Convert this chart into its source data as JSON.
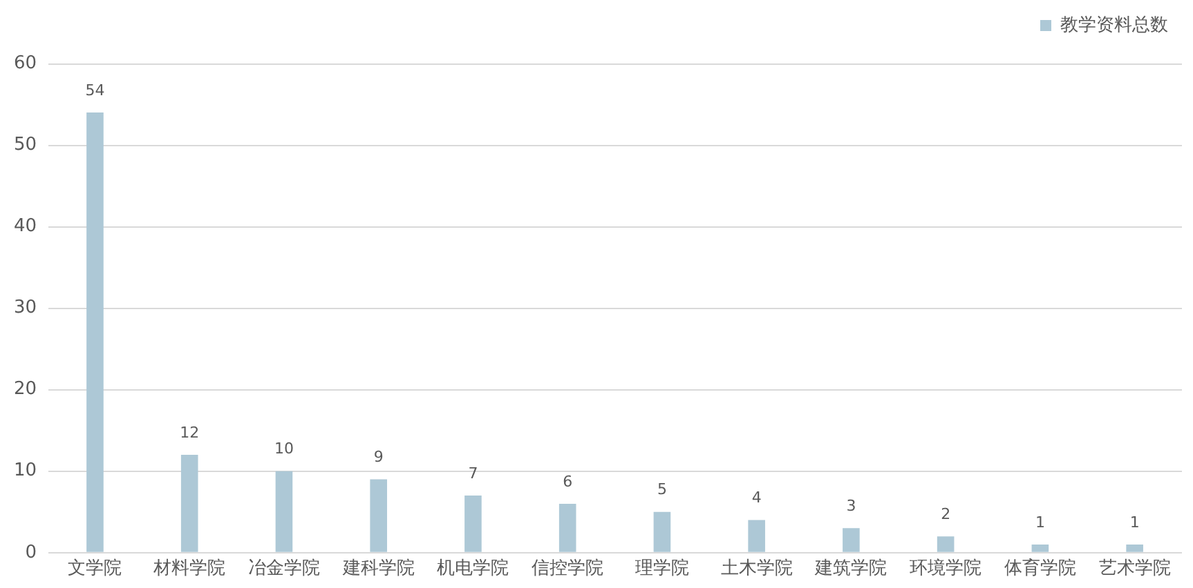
{
  "chart_data": {
    "type": "bar",
    "categories": [
      "文学院",
      "材料学院",
      "冶金学院",
      "建科学院",
      "机电学院",
      "信控学院",
      "理学院",
      "土木学院",
      "建筑学院",
      "环境学院",
      "体育学院",
      "艺术学院"
    ],
    "series": [
      {
        "name": "教学资料总数",
        "color": "#adc8d6",
        "values": [
          54,
          12,
          10,
          9,
          7,
          6,
          5,
          4,
          3,
          2,
          1,
          1
        ]
      }
    ],
    "ylim": [
      0,
      60
    ],
    "yticks": [
      0,
      10,
      20,
      30,
      40,
      50,
      60
    ],
    "grid": "y",
    "legend": "top right",
    "data_labels": true
  }
}
